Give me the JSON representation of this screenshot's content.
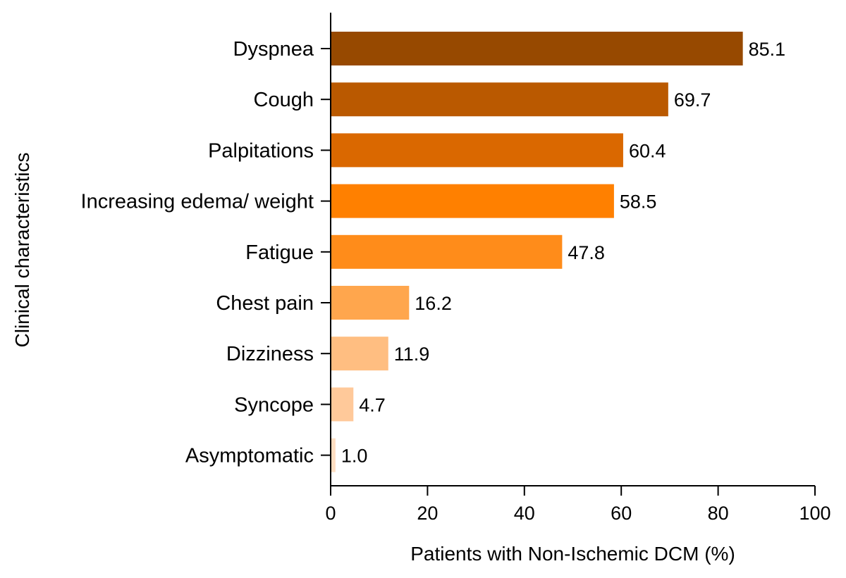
{
  "chart_data": {
    "type": "bar",
    "orientation": "horizontal",
    "categories": [
      "Dyspnea",
      "Cough",
      "Palpitations",
      "Increasing edema/ weight",
      "Fatigue",
      "Chest pain",
      "Dizziness",
      "Syncope",
      "Asymptomatic"
    ],
    "values": [
      85.1,
      69.7,
      60.4,
      58.5,
      47.8,
      16.2,
      11.9,
      4.7,
      1.0
    ],
    "value_labels": [
      "85.1",
      "69.7",
      "60.4",
      "58.5",
      "47.8",
      "16.2",
      "11.9",
      "4.7",
      "1.0"
    ],
    "bar_colors": [
      "#974900",
      "#BA5900",
      "#DA6800",
      "#FF8000",
      "#FF8C1A",
      "#FFA64D",
      "#FFBE81",
      "#FFC99A",
      "#FFDEC2"
    ],
    "xlabel": "Patients with Non-Ischemic DCM (%)",
    "ylabel": "Clinical characteristics",
    "xlim": [
      0,
      100
    ],
    "xticks": [
      0,
      20,
      40,
      60,
      80,
      100
    ],
    "xtick_labels": [
      "0",
      "20",
      "40",
      "60",
      "80",
      "100"
    ],
    "grid": false,
    "legend": "none"
  }
}
